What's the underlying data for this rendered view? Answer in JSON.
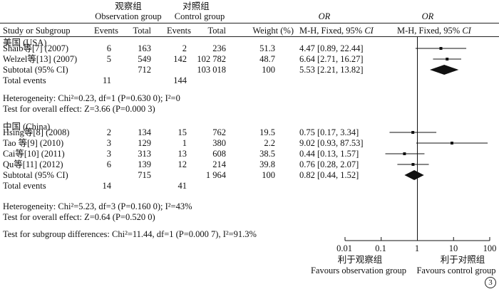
{
  "header": {
    "obs_cn": "观察组",
    "obs_en": "Observation group",
    "ctl_cn": "对照组",
    "ctl_en": "Control group",
    "or_label": "OR",
    "study": "Study or Subgroup",
    "events1": "Events",
    "total1": "Total",
    "events2": "Events",
    "total2": "Total",
    "weight": "Weight (%)",
    "or_method": "M-H, Fixed, 95%",
    "ci": "CI"
  },
  "groups": {
    "usa": {
      "title": "美国 (USA)",
      "heterogeneity": "Heterogeneity: Chi²=0.23, df=1 (P=0.630 0); I²=0",
      "overall": "Test for overall effect: Z=3.66 (P=0.000 3)"
    },
    "china": {
      "title": "中国 (China)",
      "heterogeneity": "Heterogeneity: Chi²=5.23, df=3 (P=0.160 0); I²=43%",
      "overall": "Test for overall effect: Z=0.64 (P=0.520 0)"
    }
  },
  "subgroup_test": "Test for subgroup differences: Chi²=11.44, df=1 (P=0.000 7), I²=91.3%",
  "axis": {
    "ticks": [
      "0.01",
      "0.1",
      "1",
      "10",
      "100"
    ],
    "left_cn": "利于观察组",
    "right_cn": "利于对照组",
    "left_en": "Favours observation group",
    "right_en": "Favours control group"
  },
  "panel_label": "3",
  "chart_data": {
    "type": "forest",
    "x_scale": "log",
    "xlim": [
      0.01,
      100
    ],
    "rows": [
      {
        "study": "Shaib等[7] (2007)",
        "events1": "6",
        "total1": "163",
        "events2": "2",
        "total2": "236",
        "weight": "51.3",
        "or_text": "4.47 [0.89, 22.44]",
        "or": 4.47,
        "lo": 0.89,
        "hi": 22.44,
        "kind": "study",
        "group": "usa"
      },
      {
        "study": "Welzel等[13] (2007)",
        "events1": "5",
        "total1": "549",
        "events2": "142",
        "total2": "102 782",
        "weight": "48.7",
        "or_text": "6.64 [2.71, 16.27]",
        "or": 6.64,
        "lo": 2.71,
        "hi": 16.27,
        "kind": "study",
        "group": "usa"
      },
      {
        "study": "Subtotal (95% CI)",
        "events1": "",
        "total1": "712",
        "events2": "",
        "total2": "103 018",
        "weight": "100",
        "or_text": "5.53 [2.21, 13.82]",
        "or": 5.53,
        "lo": 2.21,
        "hi": 13.82,
        "kind": "subtotal",
        "group": "usa"
      },
      {
        "study": "Total events",
        "events1": "11",
        "total1": "",
        "events2": "144",
        "total2": "",
        "weight": "",
        "or_text": "",
        "kind": "events",
        "group": "usa"
      },
      {
        "study": "Hsing等[8] (2008)",
        "events1": "2",
        "total1": "134",
        "events2": "15",
        "total2": "762",
        "weight": "19.5",
        "or_text": "0.75 [0.17, 3.34]",
        "or": 0.75,
        "lo": 0.17,
        "hi": 3.34,
        "kind": "study",
        "group": "china"
      },
      {
        "study": "Tao 等[9] (2010)",
        "events1": "3",
        "total1": "129",
        "events2": "1",
        "total2": "380",
        "weight": "2.2",
        "or_text": "9.02 [0.93, 87.53]",
        "or": 9.02,
        "lo": 0.93,
        "hi": 87.53,
        "kind": "study",
        "group": "china"
      },
      {
        "study": "Cai等[10] (2011)",
        "events1": "3",
        "total1": "313",
        "events2": "13",
        "total2": "608",
        "weight": "38.5",
        "or_text": "0.44 [0.13, 1.57]",
        "or": 0.44,
        "lo": 0.13,
        "hi": 1.57,
        "kind": "study",
        "group": "china"
      },
      {
        "study": "Qu等[11] (2012)",
        "events1": "6",
        "total1": "139",
        "events2": "12",
        "total2": "214",
        "weight": "39.8",
        "or_text": "0.76 [0.28, 2.07]",
        "or": 0.76,
        "lo": 0.28,
        "hi": 2.07,
        "kind": "study",
        "group": "china"
      },
      {
        "study": "Subtotal (95% CI)",
        "events1": "",
        "total1": "715",
        "events2": "",
        "total2": "1 964",
        "weight": "100",
        "or_text": "0.82 [0.44, 1.52]",
        "or": 0.82,
        "lo": 0.44,
        "hi": 1.52,
        "kind": "subtotal",
        "group": "china"
      },
      {
        "study": "Total events",
        "events1": "14",
        "total1": "",
        "events2": "41",
        "total2": "",
        "weight": "",
        "or_text": "",
        "kind": "events",
        "group": "china"
      }
    ]
  }
}
